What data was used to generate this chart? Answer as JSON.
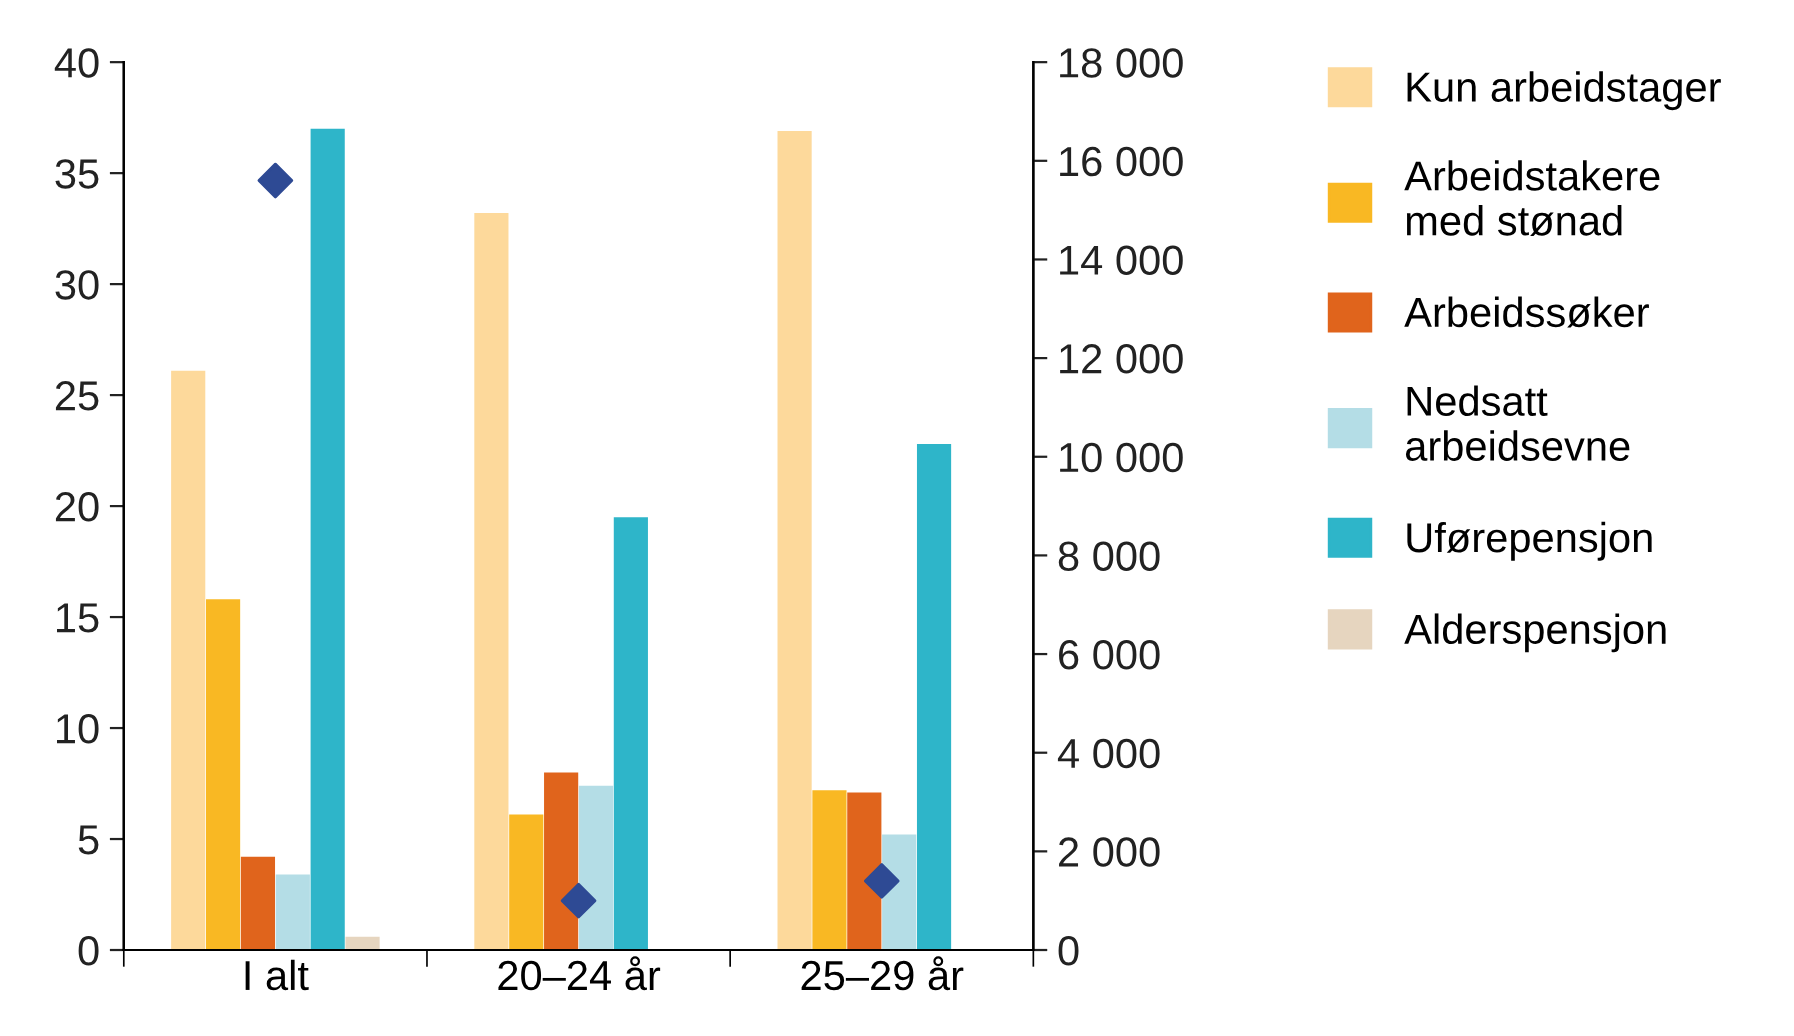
{
  "chart_data": {
    "type": "bar",
    "categories": [
      "I alt",
      "20–24 år",
      "25–29 år"
    ],
    "series": [
      {
        "name": "Kun arbeidstager",
        "color": "#fdd99b",
        "values": [
          26.1,
          33.2,
          36.9
        ]
      },
      {
        "name": "Arbeidstakere\nmed stønad",
        "color": "#f9b823",
        "values": [
          15.8,
          6.1,
          7.2
        ]
      },
      {
        "name": "Arbeidssøker",
        "color": "#e0641c",
        "values": [
          4.2,
          8.0,
          7.1
        ]
      },
      {
        "name": "Nedsatt\narbeidsevne",
        "color": "#b4dde6",
        "values": [
          3.4,
          7.4,
          5.2
        ]
      },
      {
        "name": "Uførepensjon",
        "color": "#2eb5c9",
        "values": [
          37.0,
          19.5,
          22.8
        ]
      },
      {
        "name": "Alderspensjon",
        "color": "#e6d5bf",
        "values": [
          0.6,
          null,
          null
        ]
      },
      {
        "type": "scatter",
        "axis": "y2",
        "color": "#2e4a94",
        "marker": "diamond",
        "x": [
          "I alt",
          "20–24 år",
          "25–29 år"
        ],
        "values": [
          15600,
          1000,
          1400
        ]
      }
    ],
    "ylim": [
      0,
      40
    ],
    "yticks": [
      0,
      5,
      10,
      15,
      20,
      25,
      30,
      35,
      40
    ],
    "y2lim": [
      0,
      18000
    ],
    "y2ticks": [
      0,
      {
        "value": 2000,
        "label": "2 000"
      },
      {
        "value": 4000,
        "label": "4 000"
      },
      {
        "value": 6000,
        "label": "6 000"
      },
      {
        "value": 8000,
        "label": "8 000"
      },
      {
        "value": 10000,
        "label": "10 000"
      },
      {
        "value": 12000,
        "label": "12 000"
      },
      {
        "value": 14000,
        "label": "14 000"
      },
      {
        "value": 16000,
        "label": "16 000"
      },
      {
        "value": 18000,
        "label": "18 000"
      }
    ],
    "grid": false,
    "legend": "right"
  }
}
